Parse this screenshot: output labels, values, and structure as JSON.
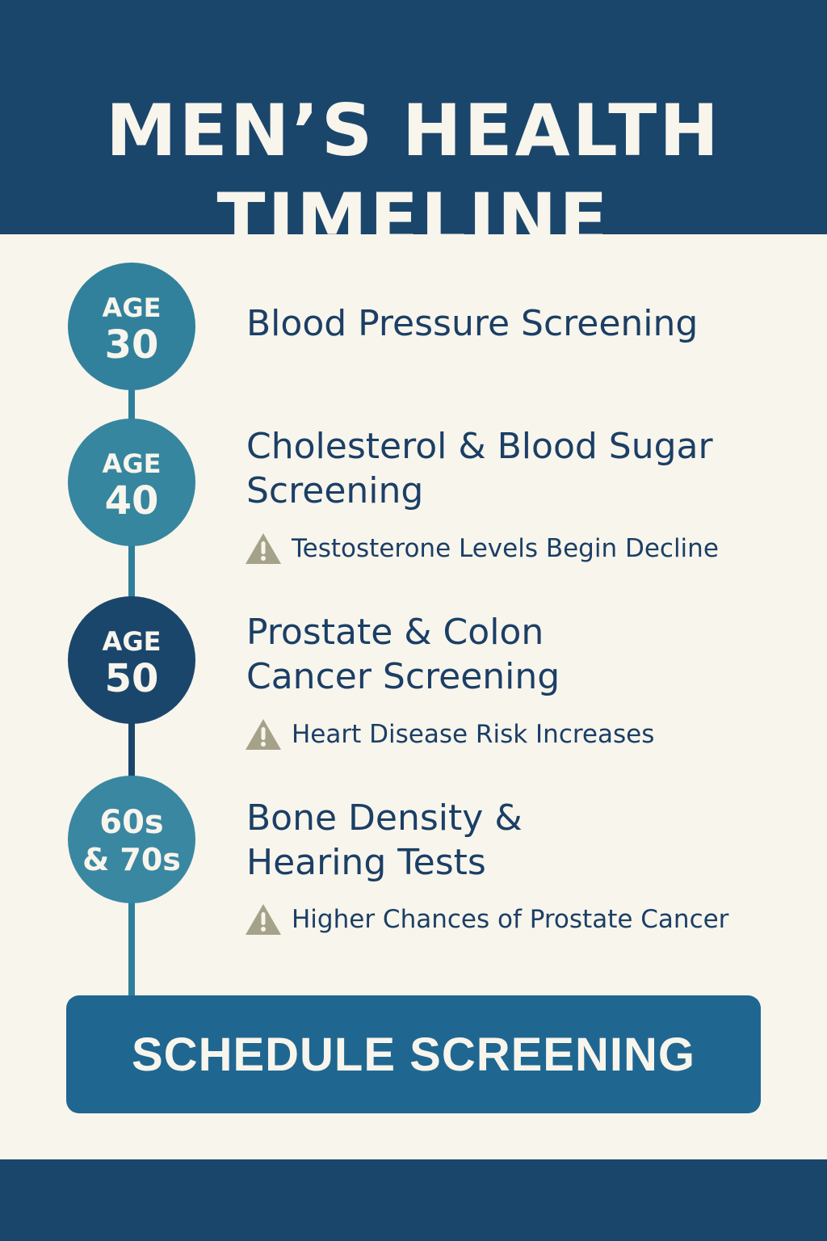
{
  "header": {
    "title_line1": "MEN’S HEALTH",
    "title_line2": "TIMELINE"
  },
  "milestones": [
    {
      "badge_top": "AGE",
      "badge_bottom": "30",
      "screening": "Blood Pressure Screening",
      "risk": null
    },
    {
      "badge_top": "AGE",
      "badge_bottom": "40",
      "screening_line1": "Cholesterol & Blood Sugar",
      "screening_line2": "Screening",
      "risk": "Testosterone Levels Begin Decline"
    },
    {
      "badge_top": "AGE",
      "badge_bottom": "50",
      "screening_line1": "Prostate & Colon",
      "screening_line2": "Cancer Screening",
      "risk": "Heart Disease Risk Increases"
    },
    {
      "badge_top": "60s",
      "badge_bottom": "& 70s",
      "screening_line1": "Bone Density &",
      "screening_line2": "Hearing Tests",
      "risk": "Higher Chances of Prostate Cancer"
    }
  ],
  "cta": {
    "label": "SCHEDULE SCREENING"
  },
  "colors": {
    "navy": "#1b466c",
    "teal": "#32819c",
    "cream": "#f8f5ec",
    "warning": "#a6a28a",
    "button": "#1f6791"
  },
  "icons": {
    "warning": "warning-icon"
  }
}
